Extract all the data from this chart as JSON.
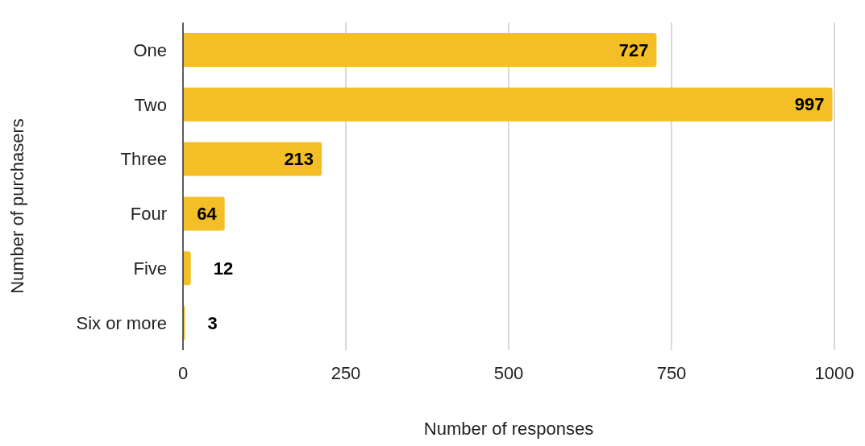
{
  "chart_data": {
    "type": "bar",
    "orientation": "horizontal",
    "xlabel": "Number of responses",
    "ylabel": "Number of purchasers",
    "categories": [
      "One",
      "Two",
      "Three",
      "Four",
      "Five",
      "Six or more"
    ],
    "values": [
      727,
      997,
      213,
      64,
      12,
      3
    ],
    "color": "#f4bf26",
    "xlim": [
      0,
      1000
    ],
    "xticks": [
      0,
      250,
      500,
      750,
      1000
    ],
    "grid": "x",
    "data_labels": true
  }
}
